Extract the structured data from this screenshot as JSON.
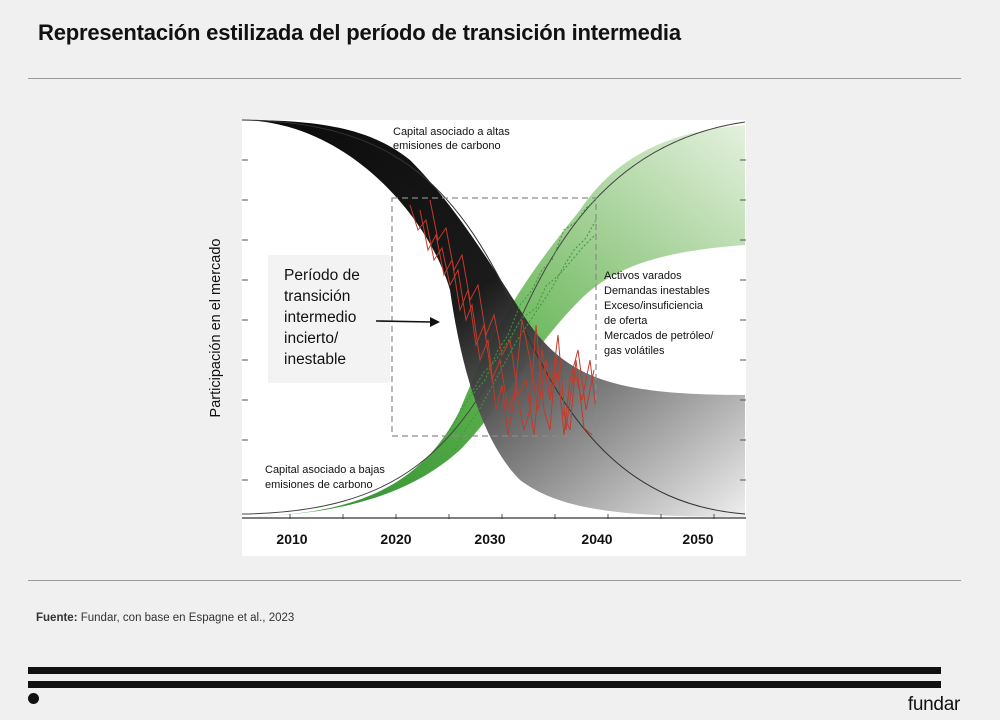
{
  "header": {
    "title": "Representación estilizada del período de transición intermedia"
  },
  "figure": {
    "y_axis_label": "Participación en el mercado",
    "x_ticks": [
      "2010",
      "2020",
      "2030",
      "2040",
      "2050"
    ],
    "label_high_carbon": [
      "Capital asociado a altas",
      "emisiones de carbono"
    ],
    "label_low_carbon": [
      "Capital asociado a bajas",
      "emisiones de carbono"
    ],
    "label_transition": [
      "Período de",
      "transición",
      "intermedio",
      "incierto/",
      "inestable"
    ],
    "label_risks": [
      "Activos varados",
      "Demandas inestables",
      "Exceso/insuficiencia",
      "de oferta",
      "Mercados de petróleo/",
      "gas volátiles"
    ],
    "colors": {
      "high_carbon": "#111111",
      "low_carbon": "#3f9e3f",
      "volatility": "#c23a2a",
      "background": "#ffffff"
    }
  },
  "footer": {
    "source_label": "Fuente:",
    "source_text": " Fundar, con base en Espagne et al., 2023",
    "brand": "fundar"
  }
}
